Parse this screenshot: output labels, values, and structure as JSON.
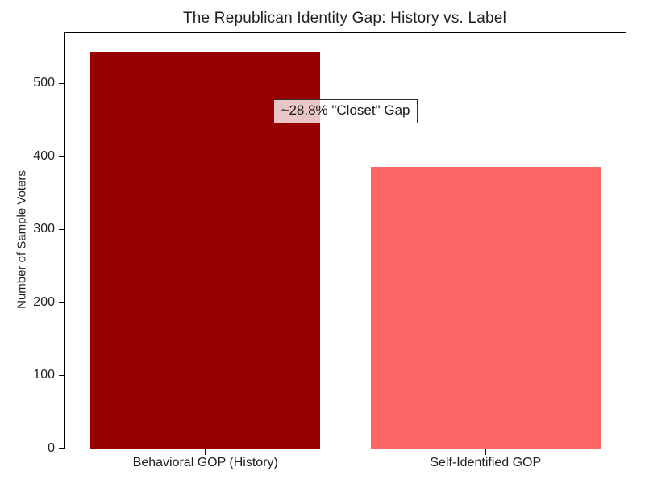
{
  "chart_data": {
    "type": "bar",
    "title": "The Republican Identity Gap: History vs. Label",
    "categories": [
      "Behavioral GOP (History)",
      "Self-Identified GOP"
    ],
    "values": [
      542,
      386
    ],
    "bar_colors": [
      "#990000",
      "#ff6666"
    ],
    "xlabel": "",
    "ylabel": "Number of Sample Voters",
    "ylim": [
      0,
      569
    ],
    "yticks": [
      0,
      100,
      200,
      300,
      400,
      500
    ],
    "grid": false,
    "legend": "none",
    "annotation": {
      "text": "~28.8% \"Closet\" Gap",
      "x_axis_fraction": 0.5,
      "y_value": 462
    }
  }
}
